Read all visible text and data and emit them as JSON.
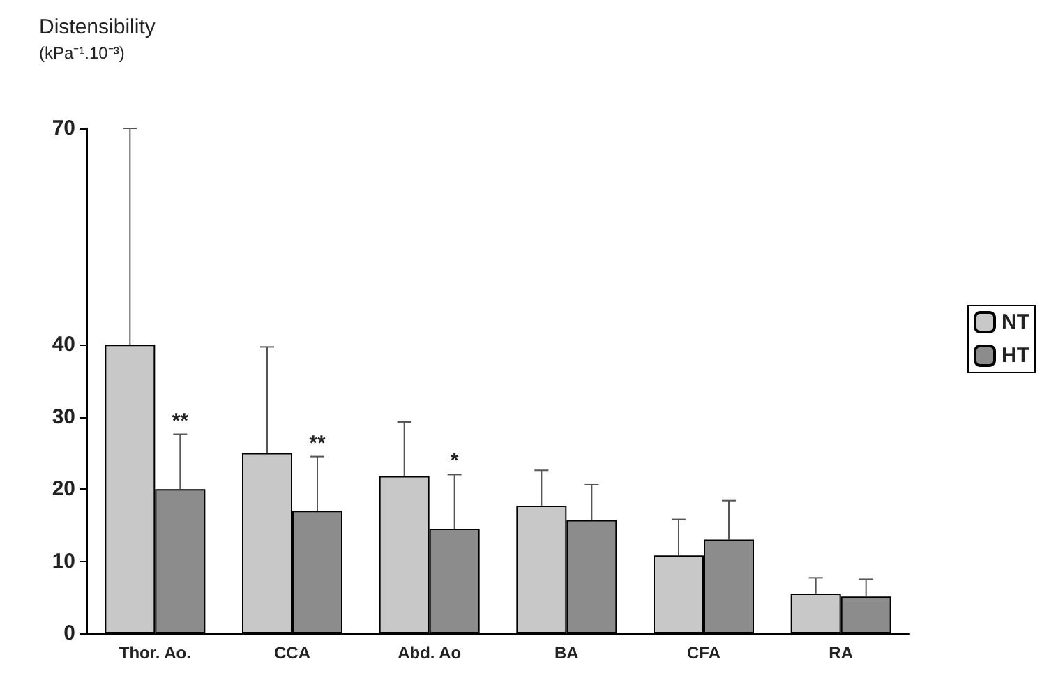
{
  "chart_data": {
    "type": "bar",
    "ylabel": "Distensibility\n(kPa⁻¹.10⁻³)",
    "categories": [
      "Thor. Ao.",
      "CCA",
      "Abd. Ao",
      "BA",
      "CFA",
      "RA"
    ],
    "series": [
      {
        "name": "NT",
        "color": "#c8c8c8",
        "values": [
          40,
          25,
          21.8,
          17.7,
          10.8,
          5.5
        ],
        "errors": [
          [
            40,
            70
          ],
          [
            25,
            39.7
          ],
          [
            21.8,
            29.3
          ],
          [
            17.7,
            22.6
          ],
          [
            10.8,
            15.8
          ],
          [
            5.5,
            7.7
          ]
        ]
      },
      {
        "name": "HT",
        "color": "#8c8c8c",
        "values": [
          20,
          17,
          14.5,
          15.7,
          13,
          5.1
        ],
        "errors": [
          [
            20,
            27.6
          ],
          [
            17,
            24.5
          ],
          [
            14.5,
            22
          ],
          [
            15.7,
            20.6
          ],
          [
            13,
            18.4
          ],
          [
            5.1,
            7.5
          ]
        ]
      }
    ],
    "annotations": [
      {
        "text": "**",
        "x": "Thor. Ao.",
        "y": 27.6
      },
      {
        "text": "**",
        "x": "CCA",
        "y": 24.5
      },
      {
        "text": "*",
        "x": "Abd. Ao",
        "y": 22
      }
    ],
    "ylim": [
      0,
      70
    ],
    "yticks": [
      0,
      10,
      20,
      30,
      40,
      70
    ],
    "grid": false,
    "legend": "right"
  }
}
